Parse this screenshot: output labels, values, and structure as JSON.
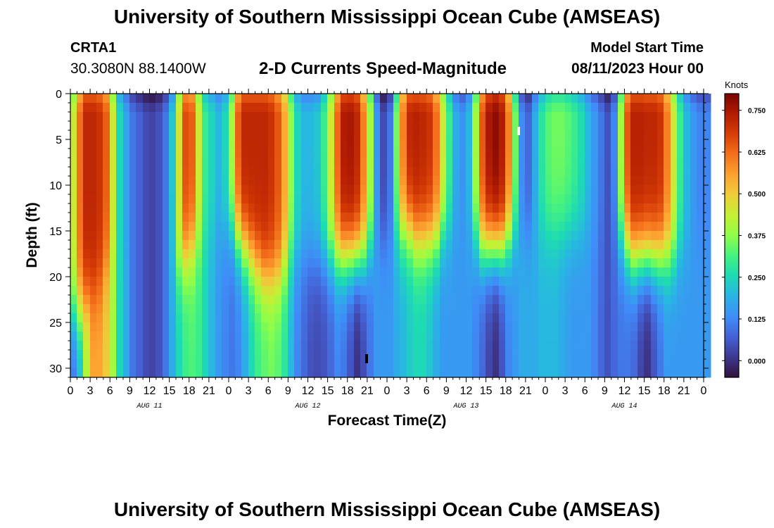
{
  "header": {
    "title_top": "University of Southern Mississippi Ocean Cube (AMSEAS)",
    "title_bottom": "University of Southern Mississippi Ocean Cube (AMSEAS)",
    "station_id": "CRTA1",
    "coordinates": "30.3080N  88.1400W",
    "subtitle": "2-D Currents Speed-Magnitude",
    "model_start_label": "Model Start Time",
    "model_start_value": "08/11/2023 Hour 00"
  },
  "chart_data": {
    "type": "heatmap",
    "title": "2-D Currents Speed-Magnitude",
    "xlabel": "Forecast Time(Z)",
    "ylabel": "Depth (ft)",
    "x_range_hours": [
      0,
      96
    ],
    "x_tick_labels": [
      "0",
      "3",
      "6",
      "9",
      "12",
      "15",
      "18",
      "21",
      "0",
      "3",
      "6",
      "9",
      "12",
      "15",
      "18",
      "21",
      "0",
      "3",
      "6",
      "9",
      "12",
      "15",
      "18",
      "21",
      "0",
      "3",
      "6",
      "9",
      "12",
      "15",
      "18",
      "21",
      "0"
    ],
    "day_labels": [
      "AUG 11",
      "AUG 12",
      "AUG 13",
      "AUG 14"
    ],
    "y_range_ft": [
      0,
      31
    ],
    "y_ticks": [
      0,
      5,
      10,
      15,
      20,
      25,
      30
    ],
    "colorbar": {
      "label": "Knots",
      "range": [
        -0.05,
        0.8
      ],
      "ticks": [
        "0.000",
        "0.125",
        "0.250",
        "0.375",
        "0.500",
        "0.625",
        "0.750"
      ],
      "tick_values": [
        0.0,
        0.125,
        0.25,
        0.375,
        0.5,
        0.625,
        0.75
      ]
    },
    "surface_speed_knots_by_hour": [
      0.45,
      0.62,
      0.72,
      0.72,
      0.7,
      0.64,
      0.45,
      0.25,
      0.17,
      0.1,
      0.07,
      0.04,
      0.03,
      0.05,
      0.1,
      0.22,
      0.46,
      0.66,
      0.64,
      0.45,
      0.3,
      0.25,
      0.2,
      0.25,
      0.4,
      0.64,
      0.72,
      0.72,
      0.72,
      0.72,
      0.7,
      0.65,
      0.55,
      0.38,
      0.25,
      0.2,
      0.2,
      0.22,
      0.3,
      0.45,
      0.63,
      0.74,
      0.75,
      0.72,
      0.6,
      0.4,
      0.15,
      0.04,
      0.1,
      0.35,
      0.6,
      0.72,
      0.73,
      0.72,
      0.7,
      0.62,
      0.45,
      0.3,
      0.18,
      0.14,
      0.2,
      0.4,
      0.65,
      0.75,
      0.78,
      0.74,
      0.6,
      0.35,
      0.13,
      0.08,
      0.18,
      0.28,
      0.33,
      0.35,
      0.35,
      0.33,
      0.3,
      0.26,
      0.2,
      0.15,
      0.1,
      0.05,
      0.12,
      0.4,
      0.65,
      0.73,
      0.73,
      0.72,
      0.72,
      0.7,
      0.6,
      0.45,
      0.3,
      0.2,
      0.15,
      0.12,
      0.12
    ],
    "bottom_speed_knots_by_hour": [
      0.1,
      0.2,
      0.4,
      0.55,
      0.55,
      0.5,
      0.4,
      0.25,
      0.18,
      0.1,
      0.07,
      0.04,
      0.03,
      0.05,
      0.1,
      0.18,
      0.25,
      0.3,
      0.32,
      0.3,
      0.25,
      0.2,
      0.15,
      0.12,
      0.1,
      0.12,
      0.18,
      0.25,
      0.3,
      0.33,
      0.35,
      0.33,
      0.28,
      0.2,
      0.12,
      0.08,
      0.05,
      0.04,
      0.05,
      0.08,
      0.12,
      0.1,
      0.05,
      0.0,
      0.04,
      0.1,
      0.15,
      0.15,
      0.15,
      0.18,
      0.2,
      0.23,
      0.25,
      0.25,
      0.22,
      0.18,
      0.15,
      0.15,
      0.15,
      0.15,
      0.15,
      0.12,
      0.08,
      0.03,
      0.0,
      0.05,
      0.12,
      0.15,
      0.18,
      0.18,
      0.18,
      0.2,
      0.2,
      0.2,
      0.18,
      0.16,
      0.15,
      0.15,
      0.15,
      0.12,
      0.08,
      0.05,
      0.08,
      0.1,
      0.1,
      0.08,
      0.03,
      0.0,
      0.05,
      0.1,
      0.15,
      0.15,
      0.15,
      0.15,
      0.15,
      0.15,
      0.15
    ],
    "decay_depth_ft_by_hour": [
      24,
      24,
      23,
      22,
      21,
      19,
      18,
      18,
      18,
      17,
      16,
      16,
      16,
      16,
      17,
      18,
      19,
      18,
      17,
      16,
      15,
      15,
      15,
      15,
      15,
      16,
      17,
      18,
      19,
      20,
      20,
      20,
      19,
      18,
      18,
      18,
      18,
      18,
      18,
      18,
      18,
      18,
      18,
      18,
      18,
      17,
      16,
      16,
      16,
      15,
      15,
      15,
      16,
      16,
      16,
      16,
      15,
      15,
      14,
      14,
      15,
      16,
      17,
      17,
      17,
      17,
      16,
      15,
      15,
      15,
      15,
      15,
      15,
      15,
      15,
      15,
      15,
      15,
      15,
      15,
      15,
      15,
      15,
      16,
      17,
      18,
      18,
      18,
      18,
      18,
      18,
      18,
      17,
      17,
      16,
      16,
      16
    ]
  }
}
